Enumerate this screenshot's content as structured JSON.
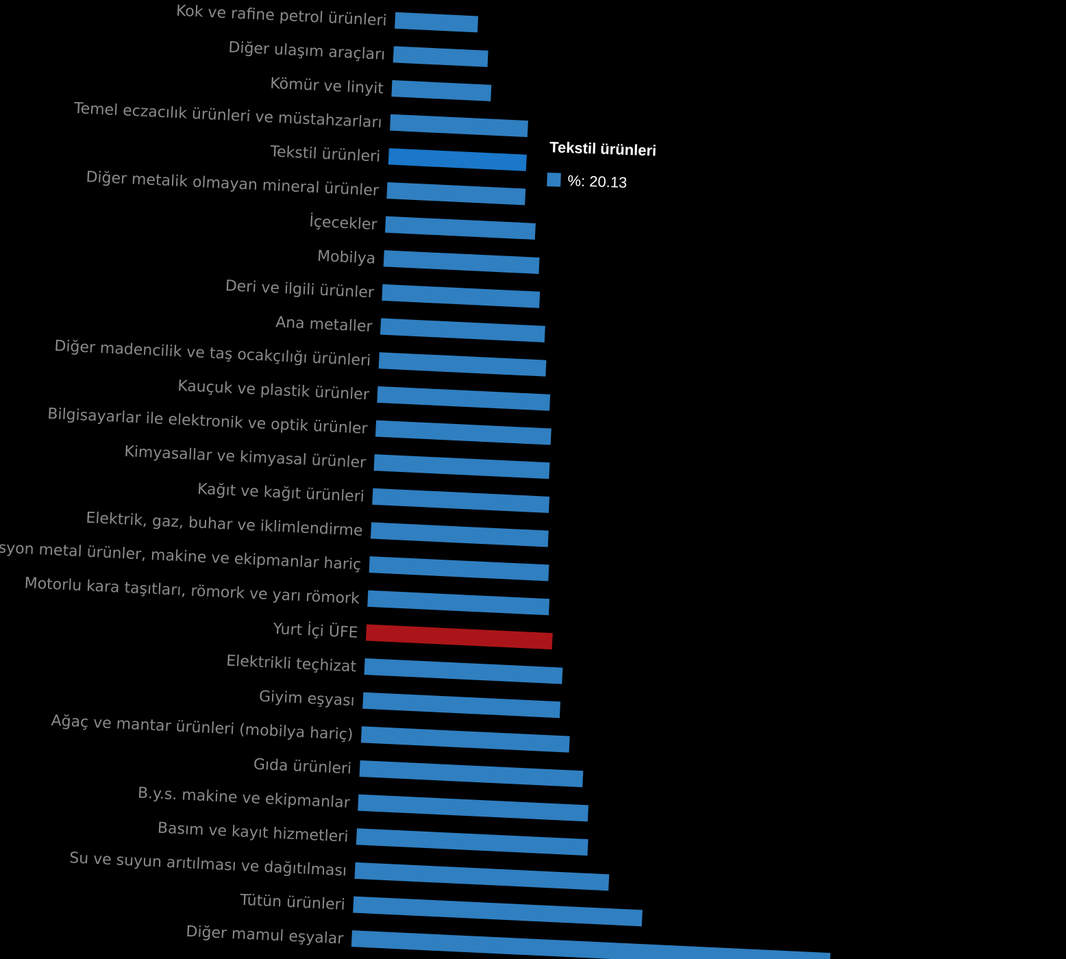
{
  "chart_data": {
    "type": "bar",
    "orientation": "horizontal",
    "categories": [
      "Kok ve rafine petrol ürünleri",
      "Diğer ulaşım araçları",
      "Kömür ve linyit",
      "Temel eczacılık ürünleri ve müstahzarları",
      "Tekstil ürünleri",
      "Diğer metalik olmayan mineral ürünler",
      "İçecekler",
      "Mobilya",
      "Deri ve ilgili ürünler",
      "Ana metaller",
      "Diğer madencilik ve taş ocakçılığı ürünleri",
      "Kauçuk ve plastik ürünler",
      "Bilgisayarlar ile elektronik ve optik ürünler",
      "Kimyasallar ve kimyasal ürünler",
      "Kağıt ve kağıt ürünleri",
      "Elektrik, gaz, buhar ve iklimlendirme",
      "Fabrikasyon metal ürünler, makine ve ekipmanlar hariç",
      "Motorlu kara taşıtları, römork ve yarı römork",
      "Yurt İçi ÜFE",
      "Elektrikli teçhizat",
      "Giyim eşyası",
      "Ağaç ve mantar ürünleri (mobilya hariç)",
      "Gıda ürünleri",
      "B.y.s. makine ve ekipmanlar",
      "Basım ve kayıt hizmetleri",
      "Su ve suyun arıtılması ve dağıtılması",
      "Tütün ürünleri",
      "Diğer mamul eşyalar"
    ],
    "values": [
      12.1,
      13.8,
      14.5,
      20.1,
      20.13,
      20.2,
      21.9,
      22.7,
      23.0,
      24.0,
      24.4,
      25.2,
      25.6,
      25.6,
      25.8,
      25.9,
      26.2,
      26.5,
      27.2,
      28.9,
      28.8,
      30.4,
      32.6,
      33.6,
      33.8,
      37.1,
      42.2,
      69.9
    ],
    "highlight": {
      "Yurt İçi ÜFE": "#ab1519",
      "Tekstil ürünleri": "#1a77c9"
    },
    "bar_color": "#2f7fc1",
    "xlim": [
      0,
      75
    ],
    "grid": false
  },
  "tooltip": {
    "title": "Tekstil ürünleri",
    "value_text": "%: 20.13",
    "swatch_color": "#2f7fc1"
  }
}
